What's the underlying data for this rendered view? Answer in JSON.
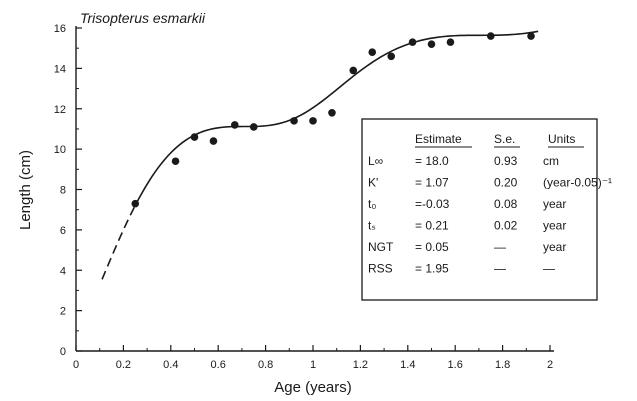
{
  "chart_data": {
    "type": "scatter",
    "title": "Trisopterus esmarkii",
    "xlabel": "Age (years)",
    "ylabel": "Length (cm)",
    "xlim": [
      0,
      2
    ],
    "ylim": [
      0,
      16
    ],
    "x_ticks": [
      "0",
      "0.2",
      "0.4",
      "0.6",
      "0.8",
      "1",
      "1.2",
      "1.4",
      "1.6",
      "1.8",
      "2"
    ],
    "y_ticks": [
      "0",
      "2",
      "4",
      "6",
      "8",
      "10",
      "12",
      "14",
      "16"
    ],
    "grid": false,
    "points": [
      {
        "x": 0.25,
        "y": 7.3
      },
      {
        "x": 0.42,
        "y": 9.4
      },
      {
        "x": 0.5,
        "y": 10.6
      },
      {
        "x": 0.58,
        "y": 10.4
      },
      {
        "x": 0.67,
        "y": 11.2
      },
      {
        "x": 0.75,
        "y": 11.1
      },
      {
        "x": 0.92,
        "y": 11.4
      },
      {
        "x": 1.0,
        "y": 11.4
      },
      {
        "x": 1.08,
        "y": 11.8
      },
      {
        "x": 1.17,
        "y": 13.9
      },
      {
        "x": 1.25,
        "y": 14.8
      },
      {
        "x": 1.33,
        "y": 14.6
      },
      {
        "x": 1.42,
        "y": 15.3
      },
      {
        "x": 1.5,
        "y": 15.2
      },
      {
        "x": 1.58,
        "y": 15.3
      },
      {
        "x": 1.75,
        "y": 15.6
      },
      {
        "x": 1.92,
        "y": 15.6
      }
    ],
    "fit": {
      "L_inf": 18.0,
      "K": 1.07,
      "t0": -0.03,
      "ts": 0.21,
      "NGT": 0.05,
      "dashed_x_range": [
        0.11,
        0.25
      ],
      "solid_x_range": [
        0.25,
        1.95
      ]
    },
    "parameter_table": {
      "headers": [
        "Estimate",
        "S.e.",
        "Units"
      ],
      "rows": [
        {
          "param": "L∞",
          "estimate": "= 18.0",
          "se": "0.93",
          "units": "cm"
        },
        {
          "param": "K'",
          "estimate": "= 1.07",
          "se": "0.20",
          "units": "(year-0.05)⁻¹"
        },
        {
          "param": "t₀",
          "estimate": "=-0.03",
          "se": "0.08",
          "units": "year"
        },
        {
          "param": "tₛ",
          "estimate": "= 0.21",
          "se": "0.02",
          "units": "year"
        },
        {
          "param": "NGT",
          "estimate": "= 0.05",
          "se": "—",
          "units": "year"
        },
        {
          "param": "RSS",
          "estimate": "= 1.95",
          "se": "—",
          "units": "—"
        }
      ]
    },
    "colors": {
      "ink": "#1a1a1a",
      "background": "#ffffff"
    }
  }
}
